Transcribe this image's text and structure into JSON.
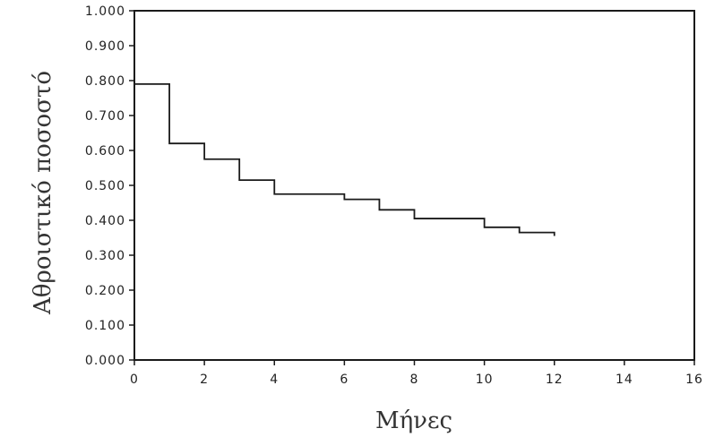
{
  "chart_data": {
    "type": "line",
    "step": true,
    "title": "",
    "xlabel": "Μήνες",
    "ylabel": "Αθροιστικό ποσοστό",
    "xlim": [
      0,
      16
    ],
    "ylim": [
      0,
      1
    ],
    "xticks": [
      0,
      2,
      4,
      6,
      8,
      10,
      12,
      14,
      16
    ],
    "xtick_labels": [
      "0",
      "2",
      "4",
      "6",
      "8",
      "10",
      "12",
      "14",
      "16"
    ],
    "yticks": [
      0,
      0.1,
      0.2,
      0.3,
      0.4,
      0.5,
      0.6,
      0.7,
      0.8,
      0.9,
      1.0
    ],
    "ytick_labels": [
      "0.000",
      "0.100",
      "0.200",
      "0.300",
      "0.400",
      "0.500",
      "0.600",
      "0.700",
      "0.800",
      "0.900",
      "1.000"
    ],
    "grid": false,
    "line_color": "#1a1a1a",
    "series": [
      {
        "x": [
          0,
          1,
          2,
          3,
          4,
          6,
          7,
          8,
          10,
          11,
          12
        ],
        "y": [
          0.79,
          0.62,
          0.575,
          0.515,
          0.475,
          0.46,
          0.43,
          0.405,
          0.38,
          0.365,
          0.355
        ]
      }
    ]
  }
}
